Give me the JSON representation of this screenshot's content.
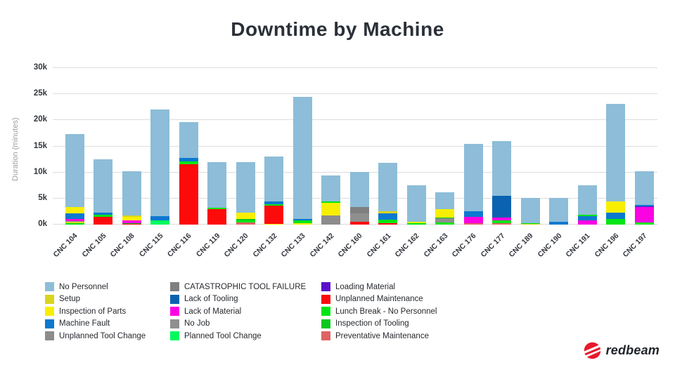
{
  "title": "Downtime by Machine",
  "branding": {
    "logo_text": "redbeam",
    "logo_color": "#e8192c"
  },
  "palette": {
    "No Personnel": "#8dbdd8",
    "Setup": "#d9d41e",
    "Inspection of Parts": "#f8ef00",
    "Machine Fault": "#0b79d0",
    "Unplanned Tool Change": "#8c8c8c",
    "CATASTROPHIC TOOL FAILURE": "#7f7f7f",
    "Lack of Tooling": "#0a62b1",
    "Lack of Material": "#fb02e3",
    "No Job": "#8f8f8f",
    "Planned Tool Change": "#00f95e",
    "Loading Material": "#5a10ca",
    "Unplanned Maintenance": "#fd0a0a",
    "Lunch Break - No Personnel": "#02e515",
    "Inspection of Tooling": "#0bc81e",
    "Preventative Maintenance": "#df6464"
  },
  "legend_columns": [
    [
      "No Personnel",
      "Setup",
      "Inspection of Parts",
      "Machine Fault",
      "Unplanned Tool Change"
    ],
    [
      "CATASTROPHIC TOOL FAILURE",
      "Lack of Tooling",
      "Lack of Material",
      "No Job",
      "Planned Tool Change"
    ],
    [
      "Loading Material",
      "Unplanned Maintenance",
      "Lunch Break - No Personnel",
      "Inspection of Tooling",
      "Preventative Maintenance"
    ]
  ],
  "chart_data": {
    "type": "bar",
    "stacked": true,
    "title": "Downtime by Machine",
    "xlabel": "",
    "ylabel": "Duration (minutes)",
    "ylim": [
      0,
      30000
    ],
    "ytick_values": [
      0,
      5000,
      10000,
      15000,
      20000,
      25000,
      30000
    ],
    "ytick_labels": [
      "0k",
      "5k",
      "10k",
      "15k",
      "20k",
      "25k",
      "30k"
    ],
    "grid": true,
    "legend_position": "bottom",
    "categories": [
      "CNC 104",
      "CNC 105",
      "CNC 108",
      "CNC 115",
      "CNC 116",
      "CNC 119",
      "CNC 120",
      "CNC 132",
      "CNC 133",
      "CNC 142",
      "CNC 160",
      "CNC 161",
      "CNC 162",
      "CNC 163",
      "CNC 176",
      "CNC 177",
      "CNC 189",
      "CNC 190",
      "CNC 191",
      "CNC 196",
      "CNC 197"
    ],
    "bars": [
      {
        "machine": "CNC 104",
        "total_minutes": 17350,
        "segments": [
          [
            "Lunch Break - No Personnel",
            250
          ],
          [
            "Setup",
            250
          ],
          [
            "No Job",
            200
          ],
          [
            "Lack of Material",
            350
          ],
          [
            "Machine Fault",
            1100
          ],
          [
            "Inspection of Parts",
            1200
          ],
          [
            "No Personnel",
            14000
          ]
        ]
      },
      {
        "machine": "CNC 105",
        "total_minutes": 12500,
        "segments": [
          [
            "Unplanned Maintenance",
            1450
          ],
          [
            "Lunch Break - No Personnel",
            450
          ],
          [
            "Machine Fault",
            450
          ],
          [
            "No Personnel",
            10150
          ]
        ]
      },
      {
        "machine": "CNC 108",
        "total_minutes": 10200,
        "segments": [
          [
            "Unplanned Maintenance",
            150
          ],
          [
            "Inspection of Tooling",
            150
          ],
          [
            "Lack of Material",
            450
          ],
          [
            "Inspection of Parts",
            700
          ],
          [
            "Setup",
            300
          ],
          [
            "No Personnel",
            8450
          ]
        ]
      },
      {
        "machine": "CNC 115",
        "total_minutes": 22100,
        "segments": [
          [
            "Planned Tool Change",
            750
          ],
          [
            "Machine Fault",
            850
          ],
          [
            "No Personnel",
            20500
          ]
        ]
      },
      {
        "machine": "CNC 116",
        "total_minutes": 19600,
        "segments": [
          [
            "Unplanned Maintenance",
            11600
          ],
          [
            "Lunch Break - No Personnel",
            550
          ],
          [
            "Machine Fault",
            650
          ],
          [
            "No Personnel",
            6800
          ]
        ]
      },
      {
        "machine": "CNC 119",
        "total_minutes": 12000,
        "segments": [
          [
            "Unplanned Maintenance",
            2900
          ],
          [
            "Lunch Break - No Personnel",
            300
          ],
          [
            "No Personnel",
            8800
          ]
        ]
      },
      {
        "machine": "CNC 120",
        "total_minutes": 12000,
        "segments": [
          [
            "Preventative Maintenance",
            450
          ],
          [
            "Lunch Break - No Personnel",
            300
          ],
          [
            "Inspection of Tooling",
            300
          ],
          [
            "Inspection of Parts",
            1250
          ],
          [
            "No Personnel",
            9700
          ]
        ]
      },
      {
        "machine": "CNC 132",
        "total_minutes": 13000,
        "segments": [
          [
            "Inspection of Parts",
            150
          ],
          [
            "Unplanned Maintenance",
            3550
          ],
          [
            "Lunch Break - No Personnel",
            250
          ],
          [
            "Machine Fault",
            500
          ],
          [
            "No Personnel",
            8550
          ]
        ]
      },
      {
        "machine": "CNC 133",
        "total_minutes": 24500,
        "segments": [
          [
            "Inspection of Parts",
            250
          ],
          [
            "Lunch Break - No Personnel",
            550
          ],
          [
            "Machine Fault",
            300
          ],
          [
            "No Personnel",
            23400
          ]
        ]
      },
      {
        "machine": "CNC 142",
        "total_minutes": 9400,
        "segments": [
          [
            "Unplanned Tool Change",
            1800
          ],
          [
            "Inspection of Parts",
            2400
          ],
          [
            "Lunch Break - No Personnel",
            250
          ],
          [
            "No Personnel",
            4950
          ]
        ]
      },
      {
        "machine": "CNC 160",
        "total_minutes": 10100,
        "segments": [
          [
            "Unplanned Maintenance",
            550
          ],
          [
            "No Job",
            1600
          ],
          [
            "CATASTROPHIC TOOL FAILURE",
            1200
          ],
          [
            "No Personnel",
            6750
          ]
        ]
      },
      {
        "machine": "CNC 161",
        "total_minutes": 11900,
        "segments": [
          [
            "Unplanned Maintenance",
            300
          ],
          [
            "Lunch Break - No Personnel",
            600
          ],
          [
            "Machine Fault",
            1250
          ],
          [
            "Setup",
            350
          ],
          [
            "No Personnel",
            9400
          ]
        ]
      },
      {
        "machine": "CNC 162",
        "total_minutes": 7500,
        "segments": [
          [
            "Lunch Break - No Personnel",
            250
          ],
          [
            "Inspection of Parts",
            250
          ],
          [
            "No Personnel",
            7000
          ]
        ]
      },
      {
        "machine": "CNC 163",
        "total_minutes": 6200,
        "segments": [
          [
            "Lunch Break - No Personnel",
            350
          ],
          [
            "No Job",
            800
          ],
          [
            "Inspection of Tooling",
            250
          ],
          [
            "Inspection of Parts",
            1500
          ],
          [
            "No Personnel",
            3300
          ]
        ]
      },
      {
        "machine": "CNC 176",
        "total_minutes": 15500,
        "segments": [
          [
            "Preventative Maintenance",
            300
          ],
          [
            "Lack of Material",
            1150
          ],
          [
            "Machine Fault",
            1150
          ],
          [
            "No Personnel",
            12900
          ]
        ]
      },
      {
        "machine": "CNC 177",
        "total_minutes": 16000,
        "segments": [
          [
            "Preventative Maintenance",
            300
          ],
          [
            "Lunch Break - No Personnel",
            500
          ],
          [
            "Lack of Material",
            600
          ],
          [
            "Lack of Tooling",
            4100
          ],
          [
            "No Personnel",
            10500
          ]
        ]
      },
      {
        "machine": "CNC 189",
        "total_minutes": 5100,
        "segments": [
          [
            "Setup",
            150
          ],
          [
            "Lunch Break - No Personnel",
            100
          ],
          [
            "No Personnel",
            4850
          ]
        ]
      },
      {
        "machine": "CNC 190",
        "total_minutes": 5100,
        "segments": [
          [
            "Machine Fault",
            550
          ],
          [
            "No Personnel",
            4550
          ]
        ]
      },
      {
        "machine": "CNC 191",
        "total_minutes": 7600,
        "segments": [
          [
            "Lack of Material",
            800
          ],
          [
            "Machine Fault",
            800
          ],
          [
            "Lunch Break - No Personnel",
            300
          ],
          [
            "No Personnel",
            5700
          ]
        ]
      },
      {
        "machine": "CNC 196",
        "total_minutes": 23200,
        "segments": [
          [
            "Lunch Break - No Personnel",
            1050
          ],
          [
            "Machine Fault",
            1250
          ],
          [
            "Inspection of Parts",
            2100
          ],
          [
            "No Personnel",
            18800
          ]
        ]
      },
      {
        "machine": "CNC 197",
        "total_minutes": 10200,
        "segments": [
          [
            "Lunch Break - No Personnel",
            350
          ],
          [
            "Lack of Material",
            3000
          ],
          [
            "Loading Material",
            150
          ],
          [
            "Machine Fault",
            300
          ],
          [
            "No Personnel",
            6400
          ]
        ]
      }
    ]
  }
}
